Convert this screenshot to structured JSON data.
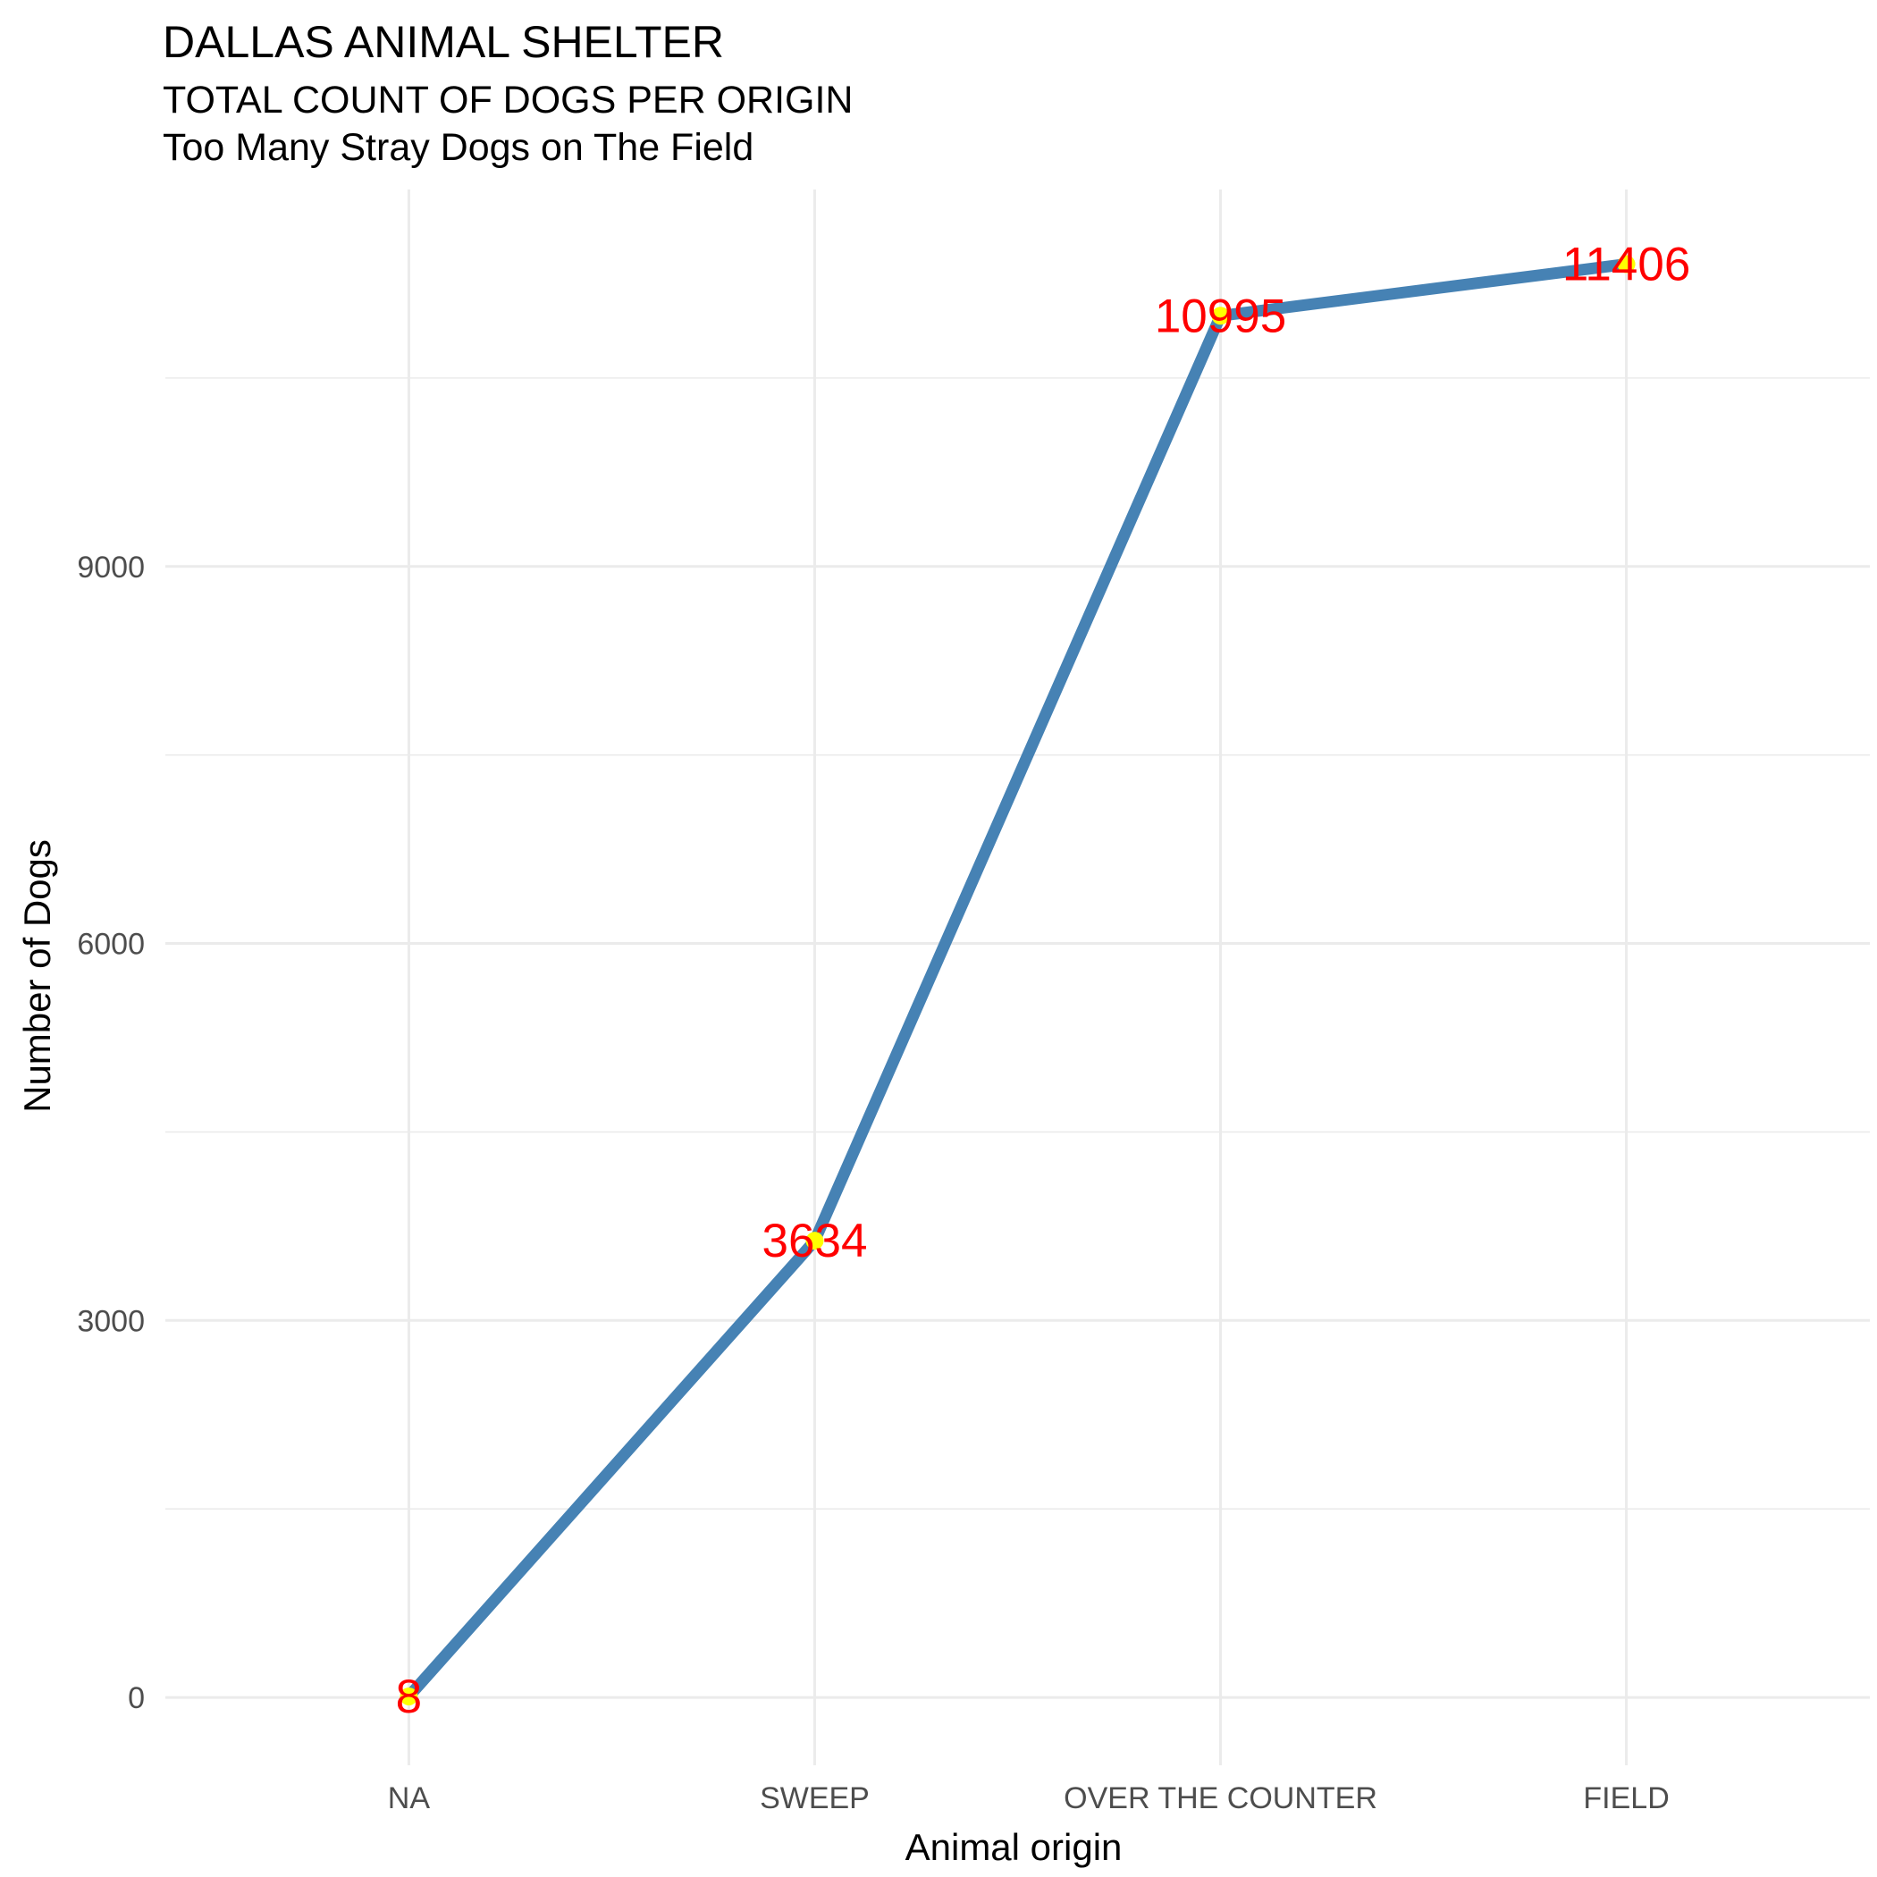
{
  "chart_data": {
    "type": "line",
    "title": "DALLAS ANIMAL SHELTER",
    "subtitle": "TOTAL COUNT OF DOGS PER ORIGIN",
    "caption_line": "Too Many Stray Dogs on The Field",
    "xlabel": "Animal origin",
    "ylabel": "Number of Dogs",
    "categories": [
      "NA",
      "SWEEP",
      "OVER THE COUNTER",
      "FIELD"
    ],
    "values": [
      8,
      3634,
      10995,
      11406
    ],
    "data_labels": [
      "8",
      "3634",
      "10995",
      "11406"
    ],
    "y_ticks": [
      0,
      3000,
      6000,
      9000
    ],
    "y_tick_labels": [
      "0",
      "3000",
      "6000",
      "9000"
    ],
    "ylim": [
      -540,
      12000
    ],
    "grid": true,
    "legend": "none",
    "colors": {
      "line": "#4682B4",
      "point": "#FFFF00",
      "label": "#FF0000",
      "grid": "#EBEBEB",
      "tick_text": "#4D4D4D"
    }
  }
}
